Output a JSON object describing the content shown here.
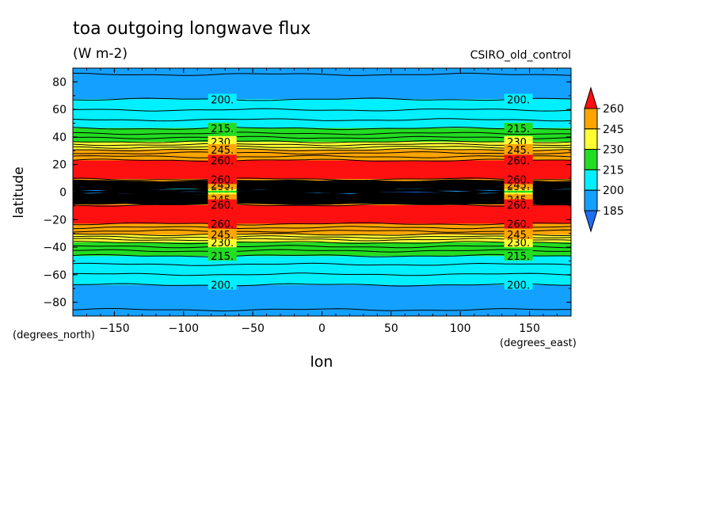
{
  "header": {
    "title": "toa outgoing longwave flux",
    "units": "(W m-2)",
    "source": "CSIRO_old_control"
  },
  "chart_data": {
    "type": "heatmap",
    "title": "toa outgoing longwave flux",
    "subtitle": "(W m-2)",
    "xlabel": "lon",
    "ylabel": "latitude",
    "x_unit_label": "(degrees_east)",
    "y_unit_label": "(degrees_north)",
    "xlim": [
      -180,
      180
    ],
    "ylim": [
      -90,
      90
    ],
    "x_ticks": [
      -150,
      -100,
      -50,
      0,
      50,
      100,
      150
    ],
    "y_ticks": [
      -80,
      -60,
      -40,
      -20,
      0,
      20,
      40,
      60,
      80
    ],
    "colorbar": {
      "ticks": [
        185,
        200,
        215,
        230,
        245,
        260
      ],
      "levels": [
        {
          "min": null,
          "max": 185,
          "color": "#1e6cf0"
        },
        {
          "min": 185,
          "max": 200,
          "color": "#14a0ff"
        },
        {
          "min": 200,
          "max": 215,
          "color": "#00f0ff"
        },
        {
          "min": 215,
          "max": 230,
          "color": "#22dd22"
        },
        {
          "min": 230,
          "max": 245,
          "color": "#ffff33"
        },
        {
          "min": 245,
          "max": 260,
          "color": "#ffa500"
        },
        {
          "min": 260,
          "max": null,
          "color": "#ff1010"
        }
      ]
    },
    "latitude_profile": [
      {
        "lat": 90,
        "value": 188
      },
      {
        "lat": 74,
        "value": 195
      },
      {
        "lat": 66,
        "value": 201
      },
      {
        "lat": 55,
        "value": 208
      },
      {
        "lat": 45,
        "value": 216
      },
      {
        "lat": 36,
        "value": 231
      },
      {
        "lat": 30,
        "value": 247
      },
      {
        "lat": 22,
        "value": 262
      },
      {
        "lat": 10,
        "value": 262
      },
      {
        "lat": 6,
        "value": 250
      },
      {
        "lat": 2,
        "value": 200
      },
      {
        "lat": 0,
        "value": 180
      },
      {
        "lat": -2,
        "value": 200
      },
      {
        "lat": -6,
        "value": 250
      },
      {
        "lat": -10,
        "value": 262
      },
      {
        "lat": -22,
        "value": 262
      },
      {
        "lat": -30,
        "value": 247
      },
      {
        "lat": -36,
        "value": 231
      },
      {
        "lat": -45,
        "value": 216
      },
      {
        "lat": -55,
        "value": 208
      },
      {
        "lat": -66,
        "value": 201
      },
      {
        "lat": -74,
        "value": 195
      },
      {
        "lat": -90,
        "value": 188
      }
    ],
    "contour_labels": [
      "200.",
      "215.",
      "230.",
      "245.",
      "260."
    ],
    "label_longitudes": [
      -72,
      142
    ]
  }
}
